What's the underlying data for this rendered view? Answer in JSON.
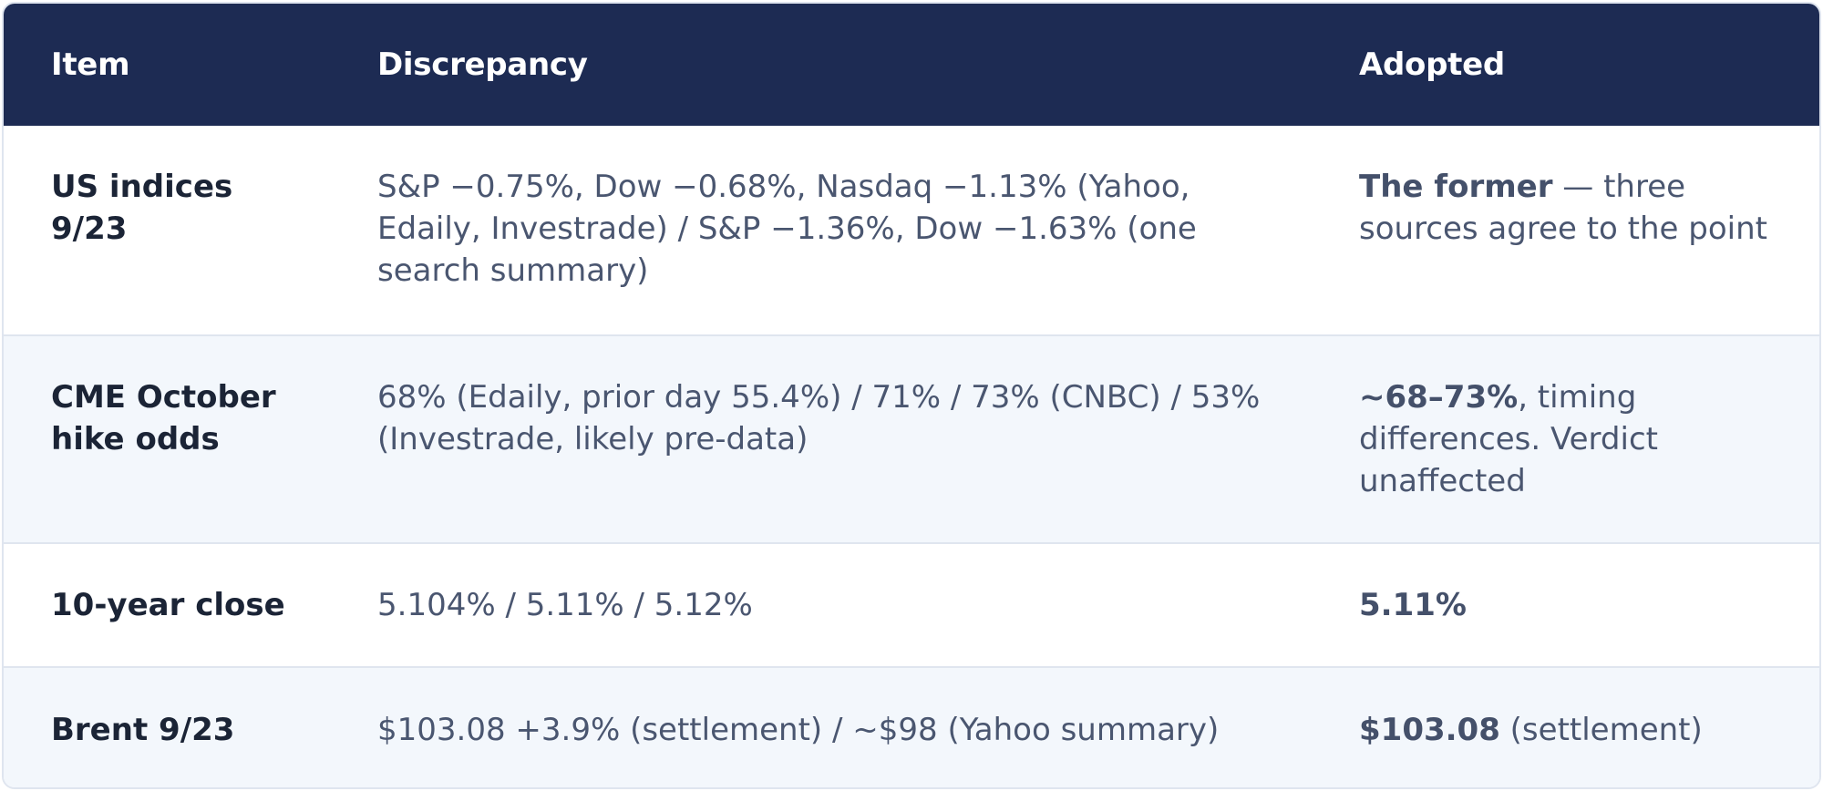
{
  "header": {
    "col_item": "Item",
    "col_discrepancy": "Discrepancy",
    "col_adopted": "Adopted"
  },
  "rows": [
    {
      "item": "US indices 9/23",
      "discrepancy": "S&P −0.75%, Dow −0.68%, Nasdaq −1.13% (Yahoo, Edaily, Investrade) / S&P −1.36%, Dow −1.63% (one search summary)",
      "adopted_bold": "The former",
      "adopted_rest": " — three sources agree to the point"
    },
    {
      "item": "CME October hike odds",
      "discrepancy": "68% (Edaily, prior day 55.4%) / 71% / 73% (CNBC) / 53% (Investrade, likely pre-data)",
      "adopted_bold": "~68–73%",
      "adopted_rest": ", timing differences. Verdict unaffected"
    },
    {
      "item": "10-year close",
      "discrepancy": "5.104% / 5.11% / 5.12%",
      "adopted_bold": "5.11%",
      "adopted_rest": ""
    },
    {
      "item": "Brent 9/23",
      "discrepancy": "$103.08 +3.9% (settlement) / ~$98 (Yahoo summary)",
      "adopted_bold": "$103.08",
      "adopted_rest": " (settlement)"
    }
  ],
  "colors": {
    "header_bg": "#1d2b53",
    "alt_row_bg": "#f3f7fc",
    "border": "#dfe5ef"
  }
}
